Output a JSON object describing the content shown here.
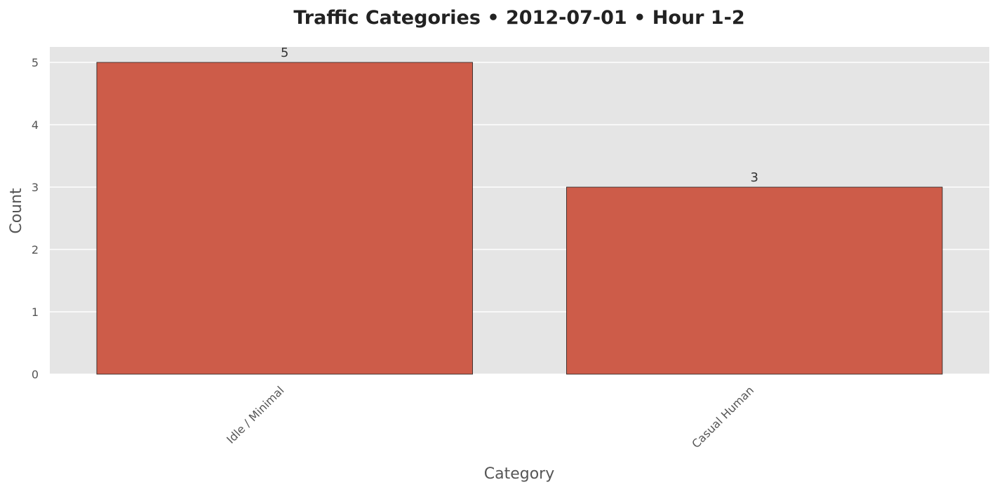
{
  "chart_data": {
    "type": "bar",
    "title": "Traffic Categories • 2012-07-01 • Hour 1-2",
    "xlabel": "Category",
    "ylabel": "Count",
    "categories": [
      "Idle / Minimal",
      "Casual Human"
    ],
    "values": [
      5,
      3
    ],
    "data_labels": [
      "5",
      "3"
    ],
    "ylim": [
      0,
      5.25
    ],
    "yticks": [
      0,
      1,
      2,
      3,
      4,
      5
    ],
    "grid": true,
    "legend": "none",
    "colors": {
      "bar": "#cd5c49",
      "bar_edge": "#222222",
      "plot_background": "#e5e5e5",
      "grid": "#ffffff"
    }
  }
}
